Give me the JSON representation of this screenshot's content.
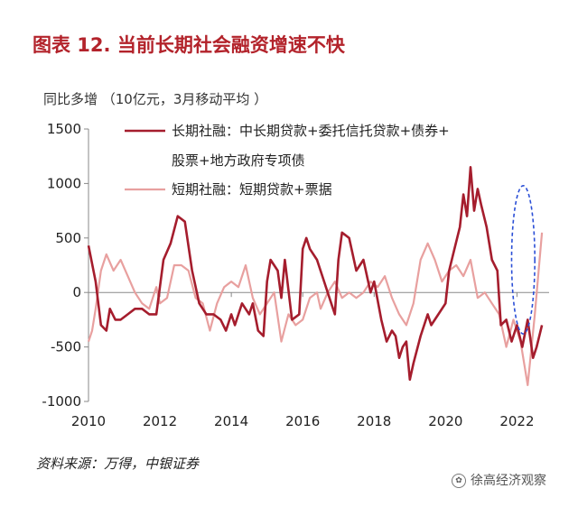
{
  "figure": {
    "title": "图表 12.  当前长期社会融资增速不快",
    "unit_label": "同比多增 （10亿元，3月移动平均 ）",
    "source": "资料来源：万得，中银证券",
    "watermark_brand": "徐高经济观察"
  },
  "chart_data": {
    "type": "line",
    "title": "",
    "xlabel": "",
    "ylabel": "同比多增 （10亿元，3月移动平均 ）",
    "xlim": [
      2010,
      2022.9
    ],
    "ylim": [
      -1000,
      1500
    ],
    "y_ticks": [
      -1000,
      -500,
      0,
      500,
      1000,
      1500
    ],
    "x_ticks": [
      2010,
      2012,
      2014,
      2016,
      2018,
      2020,
      2022
    ],
    "legend_position": "top",
    "grid": false,
    "series": [
      {
        "name": "长期社融：中长期贷款+委托信托贷款+债券+股票+地方政府专项债",
        "color": "#a51d2d",
        "x": [
          2010.0,
          2010.2,
          2010.35,
          2010.5,
          2010.6,
          2010.75,
          2010.9,
          2011.1,
          2011.3,
          2011.5,
          2011.7,
          2011.9,
          2012.1,
          2012.3,
          2012.5,
          2012.7,
          2012.9,
          2013.1,
          2013.3,
          2013.5,
          2013.7,
          2013.85,
          2014.0,
          2014.1,
          2014.3,
          2014.5,
          2014.6,
          2014.75,
          2014.9,
          2015.0,
          2015.1,
          2015.3,
          2015.4,
          2015.5,
          2015.7,
          2015.9,
          2016.0,
          2016.1,
          2016.2,
          2016.4,
          2016.6,
          2016.8,
          2016.9,
          2017.0,
          2017.1,
          2017.3,
          2017.5,
          2017.7,
          2017.9,
          2018.0,
          2018.2,
          2018.35,
          2018.5,
          2018.6,
          2018.7,
          2018.8,
          2018.9,
          2019.0,
          2019.1,
          2019.3,
          2019.5,
          2019.6,
          2019.8,
          2020.0,
          2020.1,
          2020.25,
          2020.4,
          2020.5,
          2020.6,
          2020.7,
          2020.8,
          2020.9,
          2021.0,
          2021.15,
          2021.3,
          2021.45,
          2021.55,
          2021.7,
          2021.85,
          2022.0,
          2022.15,
          2022.3,
          2022.45,
          2022.55,
          2022.7
        ],
        "values": [
          430,
          100,
          -300,
          -350,
          -150,
          -250,
          -250,
          -200,
          -150,
          -150,
          -200,
          -200,
          300,
          450,
          700,
          650,
          200,
          -100,
          -200,
          -200,
          -250,
          -350,
          -200,
          -300,
          -100,
          -200,
          -100,
          -350,
          -400,
          100,
          300,
          200,
          -50,
          300,
          -250,
          -200,
          400,
          500,
          400,
          300,
          100,
          -100,
          -200,
          300,
          550,
          500,
          200,
          300,
          0,
          100,
          -250,
          -450,
          -350,
          -400,
          -600,
          -500,
          -450,
          -800,
          -650,
          -400,
          -200,
          -300,
          -200,
          -100,
          200,
          400,
          600,
          900,
          700,
          1150,
          750,
          950,
          800,
          600,
          300,
          200,
          -300,
          -250,
          -450,
          -300,
          -500,
          -250,
          -600,
          -500,
          -300
        ]
      },
      {
        "name": "短期社融：短期贷款+票据",
        "color": "#e8a09f",
        "x": [
          2010.0,
          2010.1,
          2010.2,
          2010.35,
          2010.5,
          2010.7,
          2010.9,
          2011.1,
          2011.3,
          2011.5,
          2011.7,
          2011.9,
          2012.0,
          2012.2,
          2012.4,
          2012.6,
          2012.8,
          2013.0,
          2013.2,
          2013.4,
          2013.6,
          2013.8,
          2014.0,
          2014.2,
          2014.4,
          2014.6,
          2014.8,
          2015.0,
          2015.2,
          2015.4,
          2015.6,
          2015.8,
          2016.0,
          2016.2,
          2016.4,
          2016.5,
          2016.7,
          2016.9,
          2017.1,
          2017.3,
          2017.5,
          2017.7,
          2017.9,
          2018.1,
          2018.3,
          2018.5,
          2018.7,
          2018.9,
          2019.1,
          2019.3,
          2019.5,
          2019.7,
          2019.9,
          2020.1,
          2020.3,
          2020.5,
          2020.7,
          2020.9,
          2021.1,
          2021.3,
          2021.5,
          2021.7,
          2021.9,
          2022.1,
          2022.3,
          2022.5,
          2022.7
        ],
        "values": [
          -450,
          -350,
          -150,
          200,
          350,
          200,
          300,
          150,
          0,
          -100,
          -150,
          50,
          -100,
          -50,
          250,
          250,
          200,
          -50,
          -100,
          -350,
          -100,
          50,
          100,
          50,
          250,
          -50,
          -200,
          -100,
          0,
          -450,
          -200,
          -300,
          -250,
          -50,
          0,
          -150,
          0,
          100,
          -50,
          0,
          -50,
          0,
          100,
          50,
          150,
          -50,
          -200,
          -300,
          -100,
          300,
          450,
          300,
          100,
          200,
          250,
          150,
          300,
          -50,
          0,
          -100,
          -200,
          -500,
          -250,
          -450,
          -850,
          -200,
          550
        ]
      }
    ],
    "annotation": {
      "type": "ellipse",
      "style": "dashed",
      "color": "#2b4fd6",
      "x_range": [
        2021.85,
        2022.5
      ],
      "y_range": [
        -380,
        980
      ]
    }
  }
}
